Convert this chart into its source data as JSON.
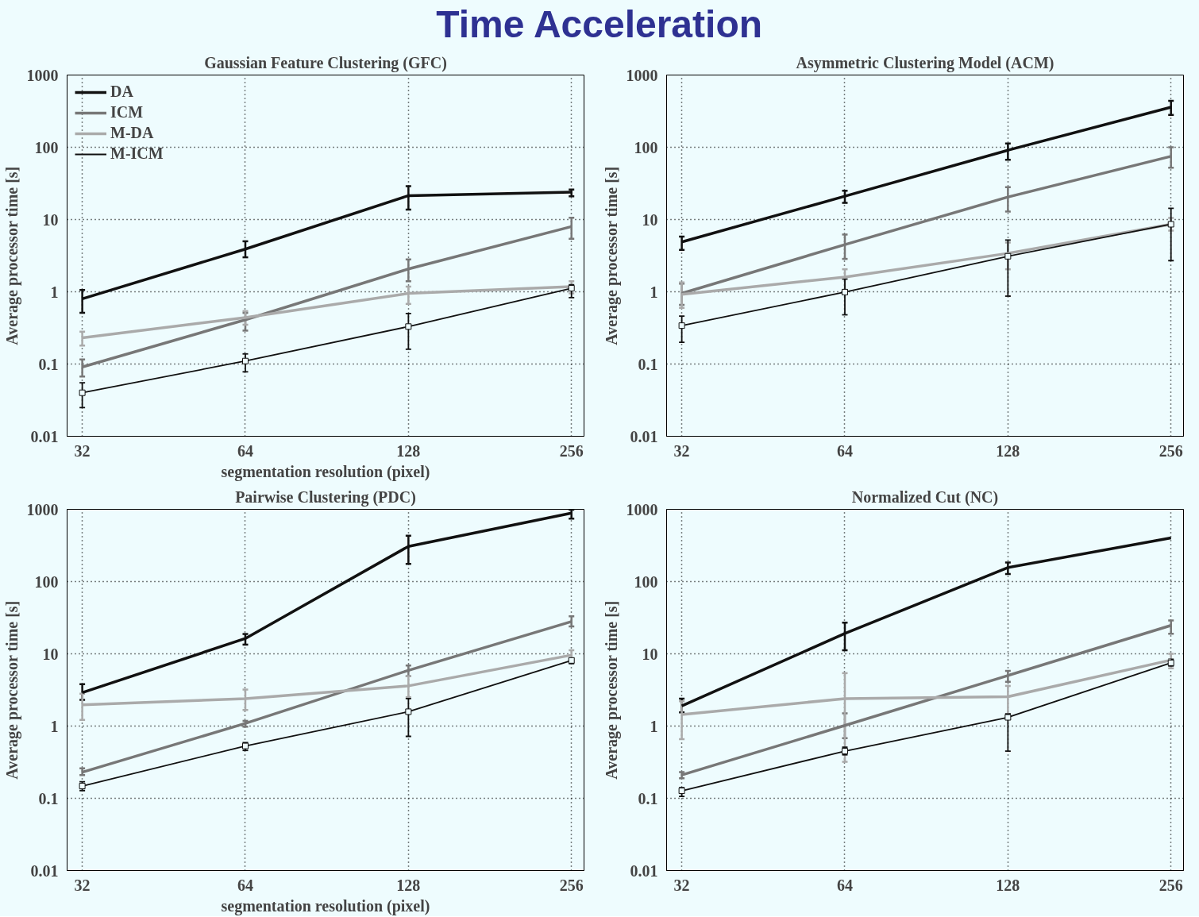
{
  "chart_data": [
    {
      "type": "other",
      "title": "Time Acceleration"
    },
    {
      "type": "line",
      "title": "Gaussian Feature Clustering (GFC)",
      "xlabel": "segmentation resolution (pixel)",
      "ylabel": "Average processor time [s]",
      "x": [
        32,
        64,
        128,
        256
      ],
      "log": "xy",
      "xlim": [
        30,
        270
      ],
      "ylim": [
        0.01,
        1000
      ],
      "xticks": [
        32,
        64,
        128,
        256
      ],
      "yticks": [
        0.01,
        0.1,
        1,
        10,
        100,
        1000
      ],
      "grid": true,
      "legend": "top left",
      "line_style": "solid",
      "series": [
        {
          "name": "DA",
          "color": "#111111",
          "values": [
            0.8,
            3.9,
            21.4,
            24
          ],
          "errors": [
            [
              0.51,
              1.06
            ],
            [
              3.0,
              5.0
            ],
            [
              13.7,
              29
            ],
            [
              21,
              26
            ]
          ]
        },
        {
          "name": "ICM",
          "color": "#777777",
          "values": [
            0.091,
            0.41,
            2.07,
            8.0
          ],
          "errors": [
            [
              0.067,
              0.116
            ],
            [
              0.29,
              0.51
            ],
            [
              1.4,
              2.8
            ],
            [
              5.4,
              10.6
            ]
          ]
        },
        {
          "name": "M-DA",
          "color": "#aaaaaa",
          "values": [
            0.23,
            0.44,
            0.95,
            1.18
          ],
          "errors": [
            [
              0.18,
              0.28
            ],
            [
              0.35,
              0.54
            ],
            [
              0.68,
              1.18
            ],
            [
              0.95,
              1.4
            ]
          ]
        },
        {
          "name": "M-ICM",
          "color": "#111111",
          "marker": "square",
          "values": [
            0.04,
            0.11,
            0.33,
            1.12
          ],
          "errors": [
            [
              0.025,
              0.055
            ],
            [
              0.078,
              0.138
            ],
            [
              0.16,
              0.5
            ],
            [
              0.83,
              1.25
            ]
          ]
        }
      ]
    },
    {
      "type": "line",
      "title": "Asymmetric Clustering Model (ACM)",
      "ylabel": "Average processor time [s]",
      "x": [
        32,
        64,
        128,
        256
      ],
      "log": "xy",
      "xlim": [
        30,
        270
      ],
      "ylim": [
        0.01,
        1000
      ],
      "xticks": [
        32,
        64,
        128,
        256
      ],
      "yticks": [
        0.01,
        0.1,
        1,
        10,
        100,
        1000
      ],
      "grid": true,
      "line_style": "solid",
      "series": [
        {
          "color": "#111111",
          "values": [
            4.9,
            21,
            91,
            359
          ],
          "errors": [
            [
              3.8,
              5.8
            ],
            [
              17,
              25
            ],
            [
              67,
              113
            ],
            [
              280,
              440
            ]
          ]
        },
        {
          "color": "#777777",
          "values": [
            0.95,
            4.5,
            20.5,
            75
          ],
          "errors": [
            [
              0.66,
              1.3
            ],
            [
              2.85,
              6.2
            ],
            [
              12.9,
              28
            ],
            [
              52,
              100
            ]
          ]
        },
        {
          "color": "#aaaaaa",
          "values": [
            0.92,
            1.6,
            3.4,
            8.6
          ],
          "errors": [
            [
              0.6,
              1.35
            ],
            [
              1.06,
              2.05
            ],
            [
              2.05,
              4.8
            ],
            [
              7,
              10.5
            ]
          ]
        },
        {
          "color": "#111111",
          "marker": "square",
          "values": [
            0.34,
            0.99,
            3.1,
            8.6
          ],
          "errors": [
            [
              0.2,
              0.46
            ],
            [
              0.48,
              1.5
            ],
            [
              0.87,
              5.2
            ],
            [
              2.7,
              14.3
            ]
          ]
        }
      ]
    },
    {
      "type": "line",
      "title": "Pairwise Clustering (PDC)",
      "xlabel": "segmentation resolution (pixel)",
      "ylabel": "Average processor time [s]",
      "x": [
        32,
        64,
        128,
        256
      ],
      "log": "xy",
      "xlim": [
        30,
        270
      ],
      "ylim": [
        0.01,
        1000
      ],
      "xticks": [
        32,
        64,
        128,
        256
      ],
      "yticks": [
        0.01,
        0.1,
        1,
        10,
        100,
        1000
      ],
      "grid": true,
      "line_style": "solid",
      "series": [
        {
          "color": "#111111",
          "values": [
            2.9,
            16.3,
            307,
            885
          ],
          "errors": [
            [
              2.3,
              3.8
            ],
            [
              13.4,
              18.8
            ],
            [
              176,
              430
            ],
            [
              745,
              990
            ]
          ]
        },
        {
          "color": "#777777",
          "values": [
            0.23,
            1.09,
            5.9,
            28
          ],
          "errors": [
            [
              0.21,
              0.26
            ],
            [
              0.98,
              1.18
            ],
            [
              4.9,
              6.9
            ],
            [
              24,
              33
            ]
          ]
        },
        {
          "color": "#aaaaaa",
          "values": [
            1.97,
            2.4,
            3.6,
            9.6
          ],
          "errors": [
            [
              1.22,
              2.8
            ],
            [
              1.67,
              3.2
            ],
            [
              2.5,
              4.9
            ],
            [
              8.2,
              11.2
            ]
          ]
        },
        {
          "color": "#111111",
          "marker": "square",
          "values": [
            0.148,
            0.53,
            1.58,
            8.1
          ],
          "errors": [
            [
              0.128,
              0.17
            ],
            [
              0.46,
              0.59
            ],
            [
              0.72,
              2.4
            ],
            [
              7.3,
              8.7
            ]
          ]
        }
      ]
    },
    {
      "type": "line",
      "title": "Normalized Cut (NC)",
      "ylabel": "Average processor time [s]",
      "x": [
        32,
        64,
        128,
        256
      ],
      "log": "xy",
      "xlim": [
        30,
        270
      ],
      "ylim": [
        0.01,
        1000
      ],
      "xticks": [
        32,
        64,
        128,
        256
      ],
      "yticks": [
        0.01,
        0.1,
        1,
        10,
        100,
        1000
      ],
      "grid": true,
      "line_style": "solid",
      "series": [
        {
          "color": "#111111",
          "values": [
            1.9,
            19.1,
            156,
            402
          ],
          "errors": [
            [
              1.55,
              2.4
            ],
            [
              11.2,
              27
            ],
            [
              127,
              184
            ],
            null
          ]
        },
        {
          "color": "#777777",
          "values": [
            0.21,
            1.02,
            5.0,
            24.7
          ],
          "errors": [
            [
              0.19,
              0.23
            ],
            [
              0.68,
              1.5
            ],
            [
              4.1,
              5.8
            ],
            [
              19,
              29
            ]
          ]
        },
        {
          "color": "#aaaaaa",
          "values": [
            1.44,
            2.4,
            2.55,
            8.2
          ],
          "errors": [
            [
              0.66,
              2.2
            ],
            [
              0.32,
              5.4
            ],
            [
              1.47,
              3.6
            ],
            [
              6.3,
              10.0
            ]
          ]
        },
        {
          "color": "#111111",
          "marker": "square",
          "values": [
            0.127,
            0.45,
            1.32,
            7.5
          ],
          "errors": [
            [
              0.106,
              0.14
            ],
            [
              0.4,
              0.51
            ],
            [
              0.45,
              1.47
            ],
            [
              6.8,
              8.4
            ]
          ]
        }
      ]
    }
  ]
}
